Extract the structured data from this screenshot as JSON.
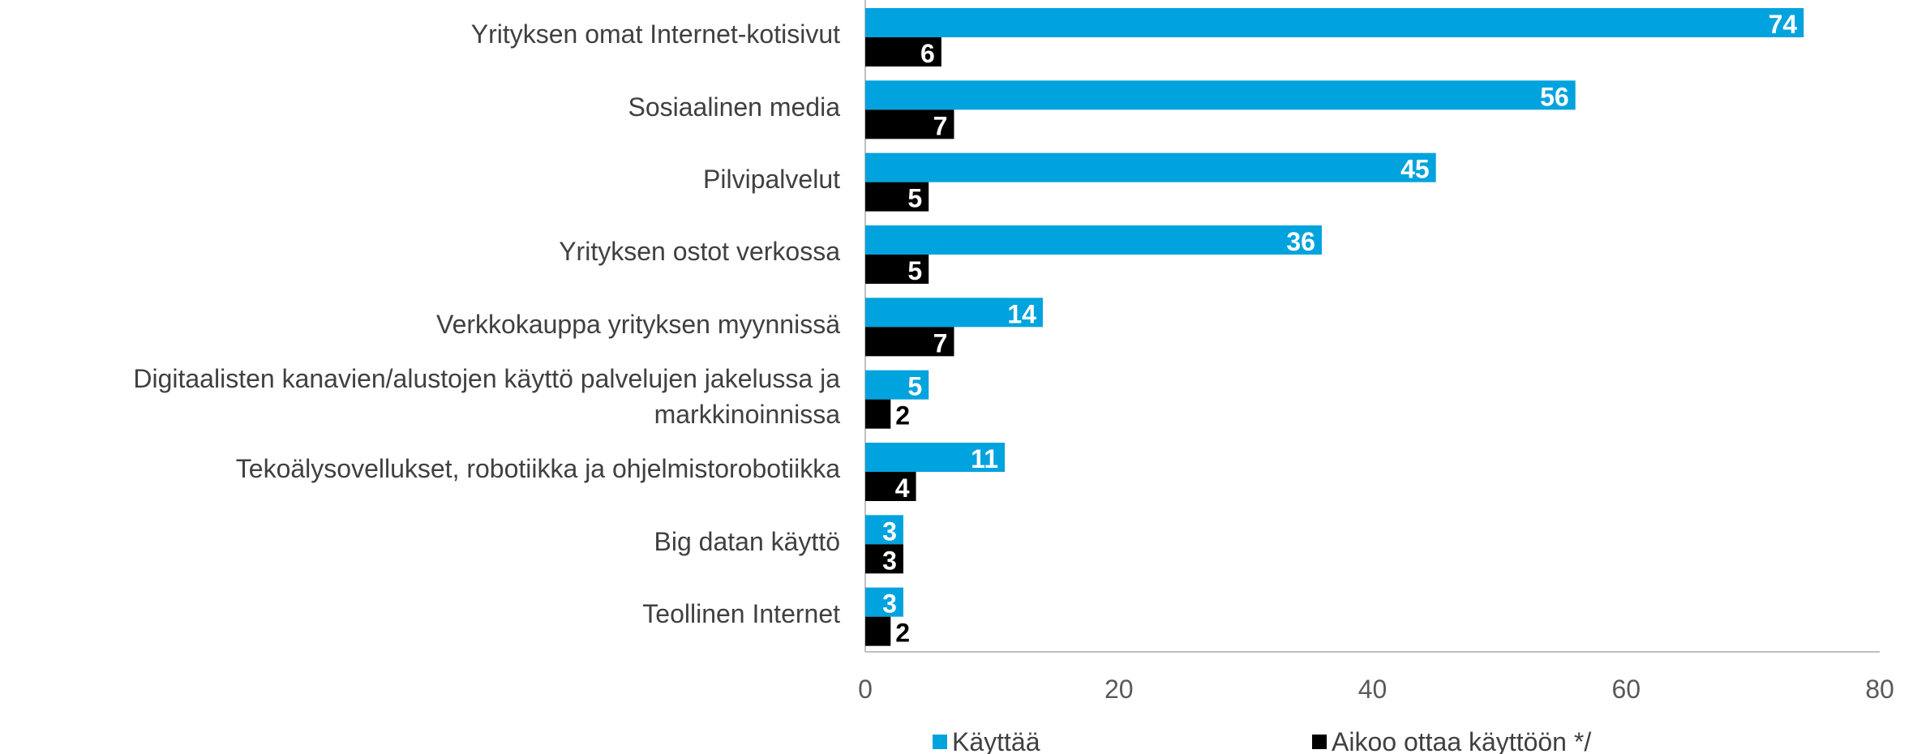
{
  "chart_data": {
    "type": "bar",
    "orientation": "horizontal",
    "categories": [
      "Yrityksen omat Internet-kotisivut",
      "Sosiaalinen media",
      "Pilvipalvelut",
      "Yrityksen ostot verkossa",
      "Verkkokauppa yrityksen myynnissä",
      "Digitaalisten kanavien/alustojen käyttö palvelujen jakelussa ja markkinoinnissa",
      "Tekoälysovellukset, robotiikka ja ohjelmistorobotiikka",
      "Big datan käyttö",
      "Teollinen Internet"
    ],
    "series": [
      {
        "name": "Käyttää",
        "color": "#00a3dd",
        "values": [
          74,
          56,
          45,
          36,
          14,
          5,
          11,
          3,
          3
        ]
      },
      {
        "name": "Aikoo ottaa käyttöön */",
        "color": "#000000",
        "values": [
          6,
          7,
          5,
          5,
          7,
          2,
          4,
          3,
          2
        ]
      }
    ],
    "xlim": [
      0,
      80
    ],
    "xticks": [
      0,
      20,
      40,
      60,
      80
    ],
    "legend": "bottom"
  }
}
